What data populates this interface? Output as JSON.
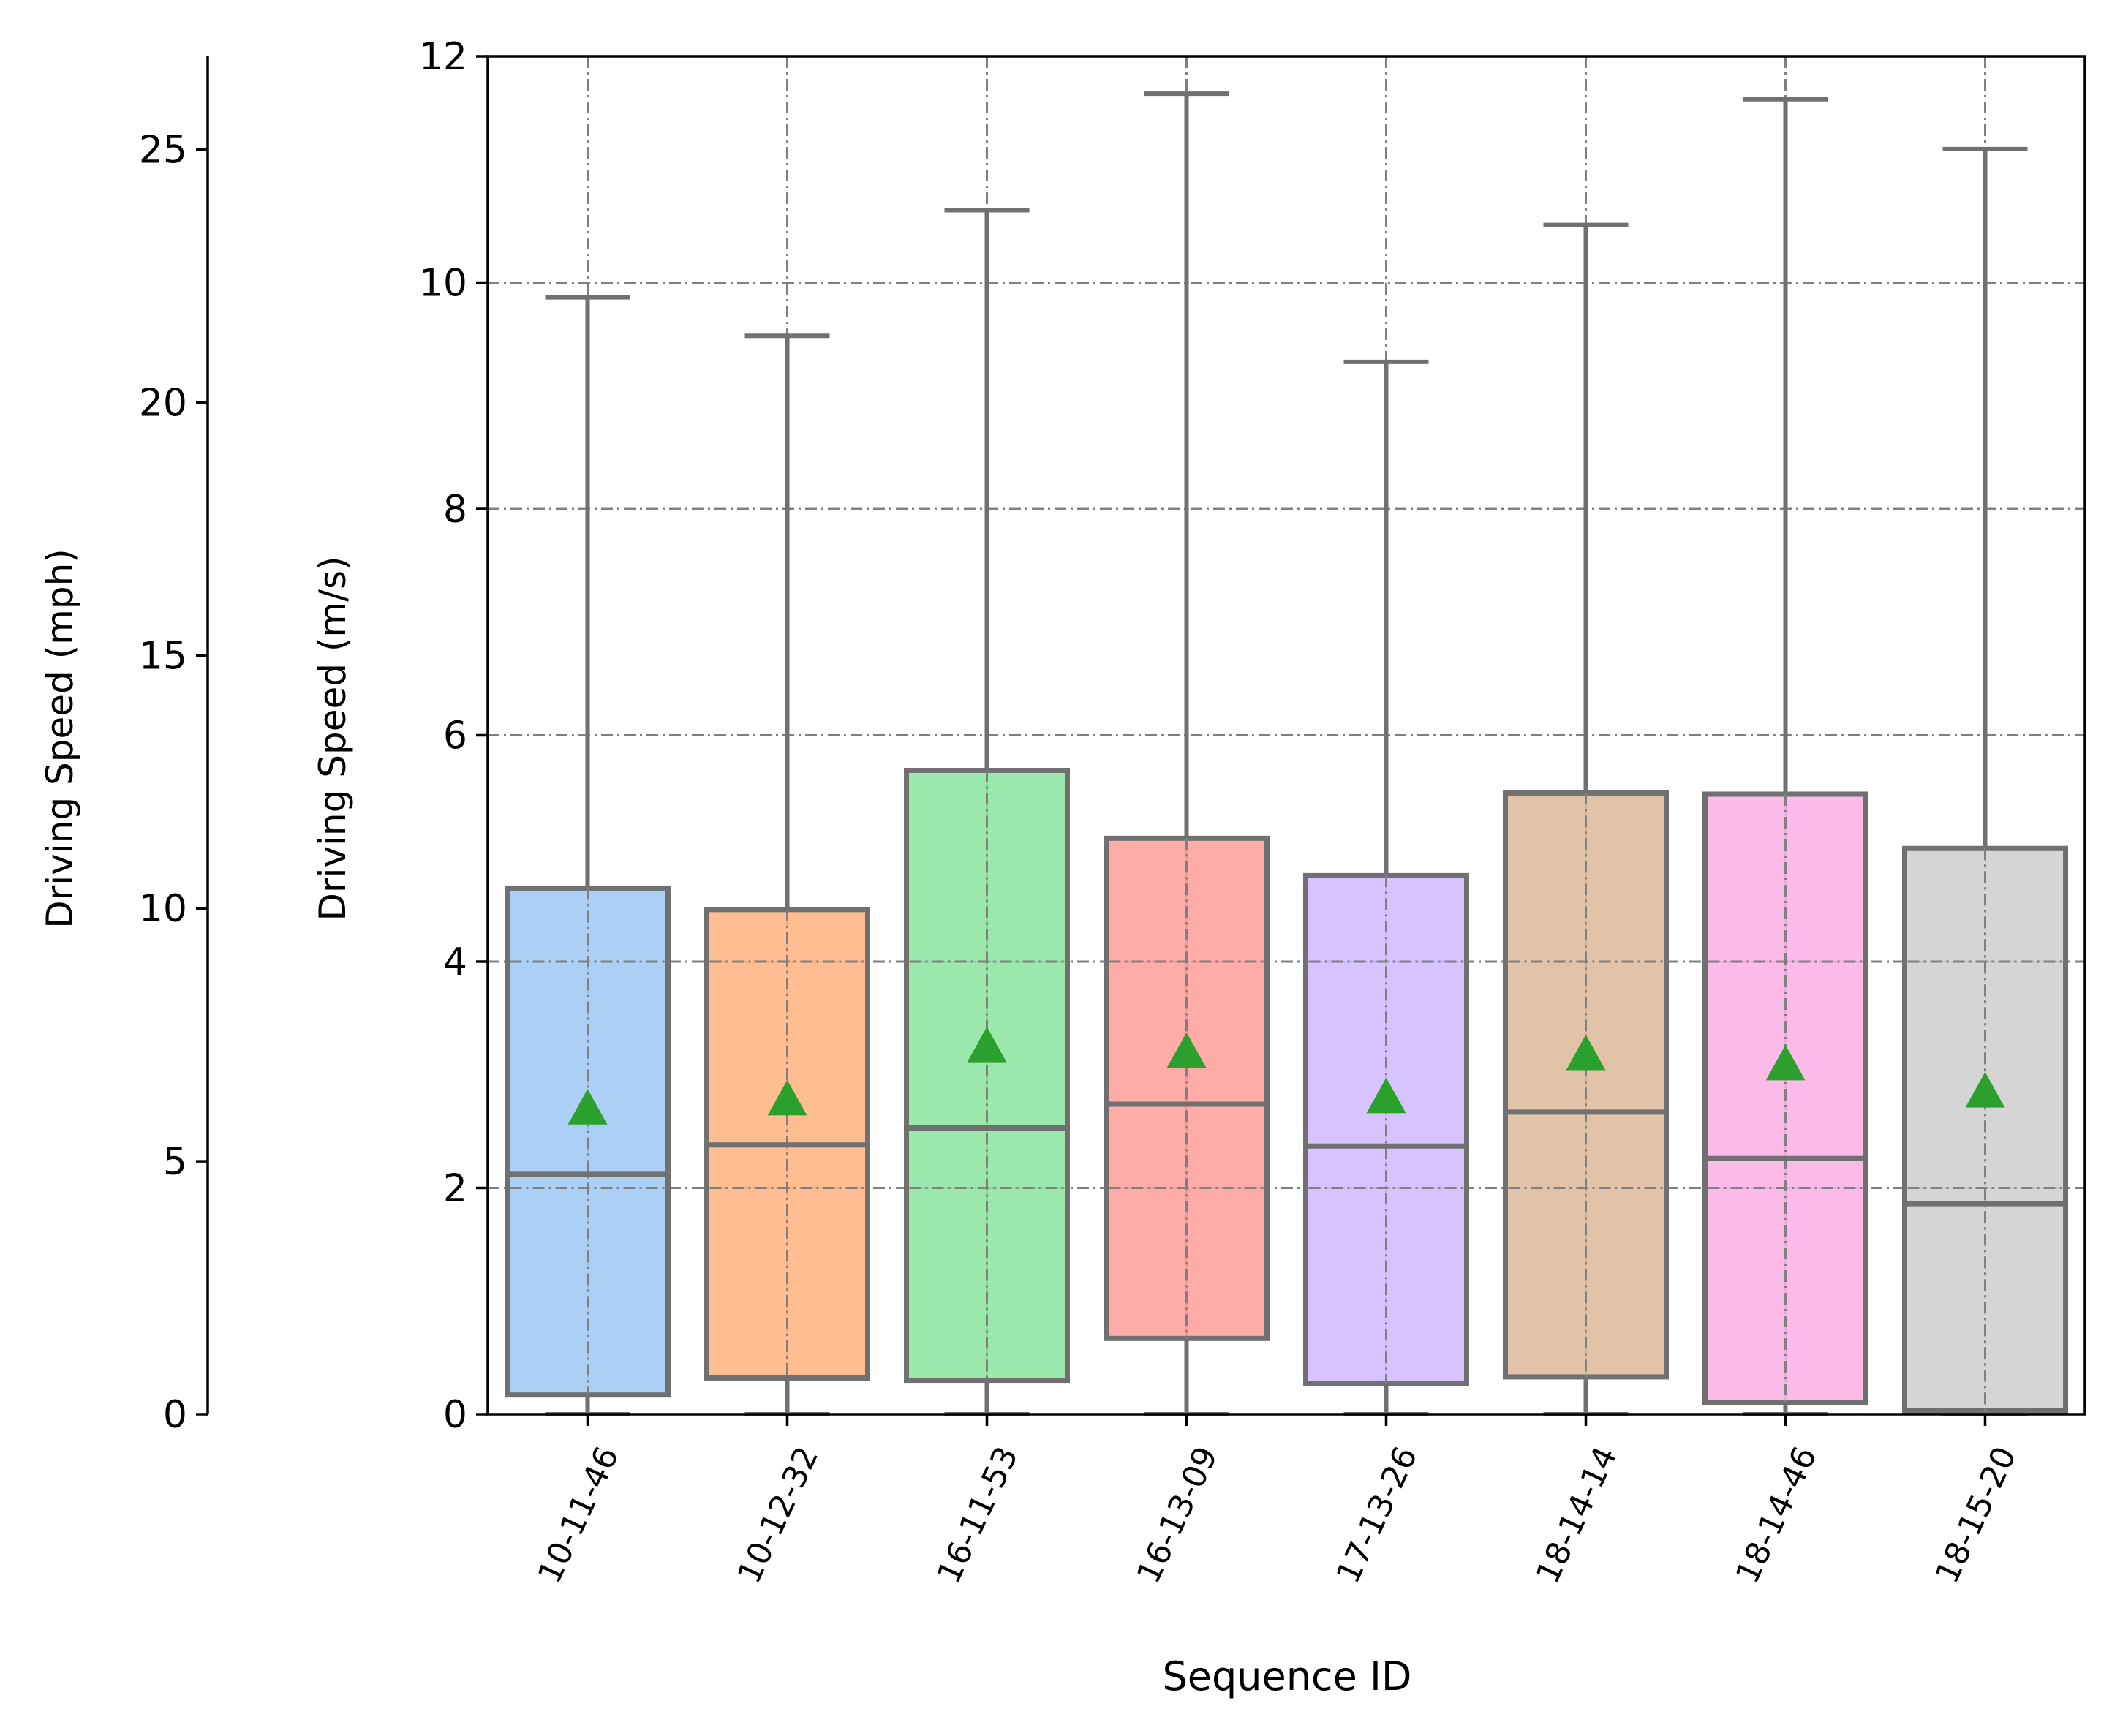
{
  "chart_data": {
    "type": "box",
    "title": "",
    "xlabel": "Sequence ID",
    "ylabel": "Driving Speed (m/s)",
    "ylim": [
      0,
      12
    ],
    "yticks": [
      0,
      2,
      4,
      6,
      8,
      10,
      12
    ],
    "grid": true,
    "secondary_axis": {
      "label": "Driving Speed (mph)",
      "ticks": [
        0,
        5,
        10,
        15,
        20,
        25
      ],
      "conversion_factor": 2.23694
    },
    "categories": [
      "10-11-46",
      "10-12-32",
      "16-11-53",
      "16-13-09",
      "17-13-26",
      "18-14-14",
      "18-14-46",
      "18-15-20"
    ],
    "boxes": [
      {
        "category": "10-11-46",
        "whisker_low": 0,
        "q1": 0.17,
        "median": 2.12,
        "q3": 4.65,
        "whisker_high": 9.87,
        "mean": 2.7,
        "color": "#a1c9f4"
      },
      {
        "category": "10-12-32",
        "whisker_low": 0,
        "q1": 0.32,
        "median": 2.38,
        "q3": 4.46,
        "whisker_high": 9.53,
        "mean": 2.78,
        "color": "#ffb482"
      },
      {
        "category": "16-11-53",
        "whisker_low": 0,
        "q1": 0.3,
        "median": 2.53,
        "q3": 5.69,
        "whisker_high": 10.64,
        "mean": 3.25,
        "color": "#8de5a1"
      },
      {
        "category": "16-13-09",
        "whisker_low": 0,
        "q1": 0.67,
        "median": 2.74,
        "q3": 5.09,
        "whisker_high": 11.67,
        "mean": 3.2,
        "color": "#ff9f9b"
      },
      {
        "category": "17-13-26",
        "whisker_low": 0,
        "q1": 0.27,
        "median": 2.37,
        "q3": 4.76,
        "whisker_high": 9.3,
        "mean": 2.8,
        "color": "#d0bbff"
      },
      {
        "category": "18-14-14",
        "whisker_low": 0,
        "q1": 0.33,
        "median": 2.67,
        "q3": 5.49,
        "whisker_high": 10.51,
        "mean": 3.18,
        "color": "#debb9b"
      },
      {
        "category": "18-14-46",
        "whisker_low": 0,
        "q1": 0.1,
        "median": 2.26,
        "q3": 5.48,
        "whisker_high": 11.62,
        "mean": 3.09,
        "color": "#fab0e4"
      },
      {
        "category": "18-15-20",
        "whisker_low": 0,
        "q1": 0.03,
        "median": 1.86,
        "q3": 5.0,
        "whisker_high": 11.18,
        "mean": 2.85,
        "color": "#cfcfcf"
      }
    ],
    "mean_marker": {
      "shape": "triangle",
      "color": "#2ca02c"
    },
    "box_edge_color": "#707070",
    "grid_color": "#808080"
  }
}
